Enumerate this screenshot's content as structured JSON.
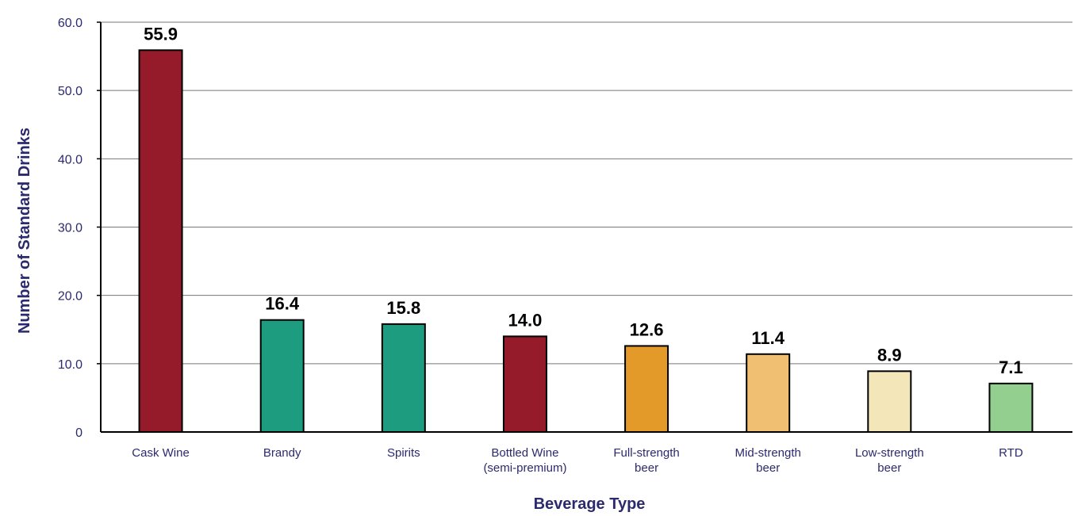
{
  "chart_data": {
    "type": "bar",
    "title": "",
    "xlabel": "Beverage Type",
    "ylabel": "Number of Standard Drinks",
    "ylim": [
      0,
      60
    ],
    "yticks": [
      "0",
      "10.0",
      "20.0",
      "30.0",
      "40.0",
      "50.0",
      "60.0"
    ],
    "grid": true,
    "legend": "none",
    "categories": [
      [
        "Cask Wine"
      ],
      [
        "Brandy"
      ],
      [
        "Spirits"
      ],
      [
        "Bottled Wine",
        "(semi-premium)"
      ],
      [
        "Full-strength",
        "beer"
      ],
      [
        "Mid-strength",
        "beer"
      ],
      [
        "Low-strength",
        "beer"
      ],
      [
        "RTD"
      ]
    ],
    "values": [
      55.9,
      16.4,
      15.8,
      14.0,
      12.6,
      11.4,
      8.9,
      7.1
    ],
    "value_labels": [
      "55.9",
      "16.4",
      "15.8",
      "14.0",
      "12.6",
      "11.4",
      "8.9",
      "7.1"
    ],
    "colors": [
      "#961b2a",
      "#1e9c80",
      "#1e9c80",
      "#961b2a",
      "#e39a28",
      "#f0bf72",
      "#f3e6b8",
      "#93cf8f"
    ]
  }
}
